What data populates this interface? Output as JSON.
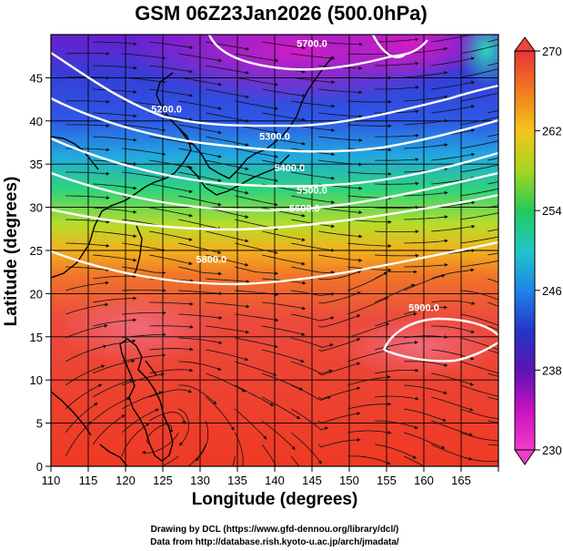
{
  "title": "GSM 06Z23Jan2026 (500.0hPa)",
  "x_label": "Longitude (degrees)",
  "y_label": "Latitude  (degrees)",
  "x_ticks": [
    "110",
    "115",
    "120",
    "125",
    "130",
    "135",
    "140",
    "145",
    "150",
    "155",
    "160",
    "165"
  ],
  "y_ticks": [
    "0",
    "5",
    "10",
    "15",
    "20",
    "25",
    "30",
    "35",
    "40",
    "45"
  ],
  "colorbar": {
    "min": 230,
    "max": 270,
    "labels": [
      "270",
      "262",
      "254",
      "246",
      "238",
      "230"
    ],
    "colors": [
      "#e8343a",
      "#f27a1e",
      "#f4c51c",
      "#a4d61e",
      "#26c95a",
      "#1fc8c8",
      "#1f84e8",
      "#2436c8",
      "#5a14b4",
      "#c812c0",
      "#f23cc8"
    ]
  },
  "credits": [
    "Drawing by DCL (https://www.gfd-dennou.org/library/dcl/)",
    "Data from http://database.rish.kyoto-u.ac.jp/arch/jmadata/"
  ],
  "map": {
    "x_range": [
      110,
      170
    ],
    "y_range": [
      0,
      50
    ],
    "contours": [
      {
        "label": "5200.0",
        "lon": 125.5,
        "lat": 41.0
      },
      {
        "label": "5300.0",
        "lon": 140.0,
        "lat": 37.8
      },
      {
        "label": "5400.0",
        "lon": 142.0,
        "lat": 34.2
      },
      {
        "label": "5500.0",
        "lon": 145.0,
        "lat": 31.6
      },
      {
        "label": "5600.0",
        "lon": 144.0,
        "lat": 29.5
      },
      {
        "label": "5700.0",
        "lon": 145.0,
        "lat": 48.6
      },
      {
        "label": "5800.0",
        "lon": 131.5,
        "lat": 23.6
      },
      {
        "label": "5900.0",
        "lon": 160.0,
        "lat": 18.0
      }
    ]
  }
}
